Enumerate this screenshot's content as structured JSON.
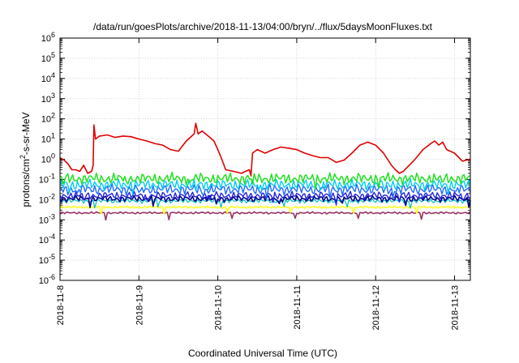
{
  "chart_data": {
    "type": "line",
    "title": "/data/run/goesPlots/archive/2018-11-13/04:00/bryn/../flux/5daysMoonFluxes.txt",
    "xlabel": "Coordinated Universal Time (UTC)",
    "ylabel_parts": {
      "pre": "protons/cm",
      "sup": "2",
      "post": "-s-sr-MeV"
    },
    "yscale": "log",
    "ylim": [
      1e-06,
      1000000.0
    ],
    "xlim_days": [
      0,
      5.2
    ],
    "grid": true,
    "legend": "none",
    "x_ticks": [
      {
        "label": "2018-11-8",
        "day": 0
      },
      {
        "label": "2018-11-9",
        "day": 1
      },
      {
        "label": "2018-11-10",
        "day": 2
      },
      {
        "label": "2018-11-11",
        "day": 3
      },
      {
        "label": "2018-11-12",
        "day": 4
      },
      {
        "label": "2018-11-13",
        "day": 5
      }
    ],
    "y_ticks": [
      {
        "exp": 6
      },
      {
        "exp": 5
      },
      {
        "exp": 4
      },
      {
        "exp": 3
      },
      {
        "exp": 2
      },
      {
        "exp": 1
      },
      {
        "exp": 0
      },
      {
        "exp": -1
      },
      {
        "exp": -2
      },
      {
        "exp": -3
      },
      {
        "exp": -4
      },
      {
        "exp": -5
      },
      {
        "exp": -6
      }
    ],
    "series": [
      {
        "color": "#e00000",
        "width": 1.6,
        "points": [
          [
            0,
            1.2
          ],
          [
            0.05,
            0.9
          ],
          [
            0.1,
            0.6
          ],
          [
            0.15,
            0.3
          ],
          [
            0.2,
            0.3
          ],
          [
            0.25,
            0.25
          ],
          [
            0.3,
            0.5
          ],
          [
            0.35,
            0.2
          ],
          [
            0.4,
            0.25
          ],
          [
            0.42,
            0.5
          ],
          [
            0.43,
            50
          ],
          [
            0.45,
            10
          ],
          [
            0.5,
            14
          ],
          [
            0.6,
            16
          ],
          [
            0.7,
            12
          ],
          [
            0.8,
            14
          ],
          [
            0.9,
            13
          ],
          [
            1.0,
            10
          ],
          [
            1.1,
            8
          ],
          [
            1.2,
            6
          ],
          [
            1.3,
            5
          ],
          [
            1.4,
            3
          ],
          [
            1.5,
            2.5
          ],
          [
            1.6,
            8
          ],
          [
            1.65,
            12
          ],
          [
            1.7,
            18
          ],
          [
            1.72,
            60
          ],
          [
            1.75,
            18
          ],
          [
            1.8,
            25
          ],
          [
            1.9,
            12
          ],
          [
            1.95,
            8
          ],
          [
            2.0,
            3
          ],
          [
            2.05,
            1
          ],
          [
            2.1,
            0.3
          ],
          [
            2.2,
            0.25
          ],
          [
            2.3,
            0.2
          ],
          [
            2.35,
            0.25
          ],
          [
            2.4,
            0.3
          ],
          [
            2.42,
            0.15
          ],
          [
            2.44,
            2
          ],
          [
            2.5,
            3
          ],
          [
            2.6,
            2
          ],
          [
            2.7,
            3
          ],
          [
            2.8,
            4
          ],
          [
            2.9,
            3.5
          ],
          [
            3.0,
            3
          ],
          [
            3.1,
            2
          ],
          [
            3.2,
            1.5
          ],
          [
            3.3,
            1.2
          ],
          [
            3.4,
            1.2
          ],
          [
            3.5,
            0.7
          ],
          [
            3.6,
            0.9
          ],
          [
            3.7,
            2
          ],
          [
            3.8,
            5
          ],
          [
            3.9,
            7
          ],
          [
            4.0,
            5
          ],
          [
            4.1,
            2
          ],
          [
            4.2,
            0.5
          ],
          [
            4.25,
            0.3
          ],
          [
            4.3,
            0.2
          ],
          [
            4.35,
            0.25
          ],
          [
            4.4,
            0.4
          ],
          [
            4.5,
            1
          ],
          [
            4.6,
            3
          ],
          [
            4.7,
            6
          ],
          [
            4.75,
            8
          ],
          [
            4.8,
            5
          ],
          [
            4.85,
            7
          ],
          [
            4.9,
            3
          ],
          [
            5.0,
            2
          ],
          [
            5.1,
            0.8
          ],
          [
            5.15,
            0.9
          ],
          [
            5.2,
            1.0
          ]
        ]
      },
      {
        "color": "#22e022",
        "width": 1.5,
        "base": 0.11,
        "amp": 0.32,
        "phase": 0.3
      },
      {
        "color": "#00ccee",
        "width": 1.4,
        "base": 0.055,
        "amp": 0.3,
        "phase": 1.2
      },
      {
        "color": "#1e6bff",
        "width": 1.4,
        "base": 0.032,
        "amp": 0.3,
        "phase": 2.1
      },
      {
        "color": "#2222dd",
        "width": 1.4,
        "base": 0.016,
        "amp": 0.22,
        "phase": 3.0
      },
      {
        "color": "#000088",
        "width": 1.6,
        "base": 0.011,
        "amp": 0.18,
        "phase": 3.7
      },
      {
        "color": "#00bbbb",
        "width": 1.2,
        "base": 0.0085,
        "amp": 0.12,
        "phase": 4.4
      },
      {
        "color": "#ffff33",
        "width": 1.8,
        "base": 0.0042,
        "amp": 0.06,
        "phase": 5.1
      },
      {
        "color": "#993366",
        "width": 1.6,
        "base": 0.0022,
        "amp": 0.06,
        "phase": 5.8
      }
    ]
  }
}
